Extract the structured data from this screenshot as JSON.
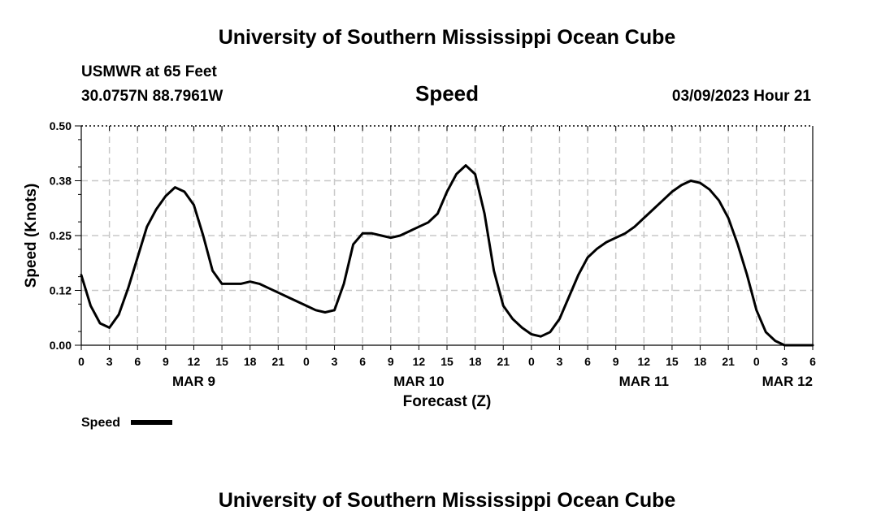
{
  "header": {
    "title": "University of Southern Mississippi Ocean Cube",
    "station": "USMWR at 65 Feet",
    "coords": "30.0757N  88.7961W",
    "variable": "Speed",
    "datetime": "03/09/2023 Hour 21"
  },
  "footer": {
    "title": "University of Southern Mississippi Ocean Cube"
  },
  "legend": {
    "label": "Speed",
    "color": "#000000"
  },
  "chart_data": {
    "type": "line",
    "title": "Speed",
    "xlabel": "Forecast (Z)",
    "ylabel": "Speed (Knots)",
    "ylim": [
      0,
      0.5
    ],
    "yticks": [
      "0.00",
      "0.12",
      "0.25",
      "0.38",
      "0.50"
    ],
    "x_range_hours": [
      0,
      78
    ],
    "x_tick_step_hours": 3,
    "x_tick_labels": [
      "0",
      "3",
      "6",
      "9",
      "12",
      "15",
      "18",
      "21",
      "0",
      "3",
      "6",
      "9",
      "12",
      "15",
      "18",
      "21",
      "0",
      "3",
      "6",
      "9",
      "12",
      "15",
      "18",
      "21",
      "0",
      "3",
      "6"
    ],
    "date_labels": [
      {
        "label": "MAR 9",
        "at_tick": 12
      },
      {
        "label": "MAR 10",
        "at_tick": 12
      },
      {
        "label": "MAR 11",
        "at_tick": 12
      },
      {
        "label": "MAR 12",
        "at_tick": 6
      }
    ],
    "grid": true,
    "legend_position": "bottom-left",
    "series": [
      {
        "name": "Speed",
        "color": "#000000",
        "x": [
          0,
          1,
          2,
          3,
          4,
          5,
          6,
          7,
          8,
          9,
          10,
          11,
          12,
          13,
          14,
          15,
          16,
          17,
          18,
          19,
          20,
          21,
          22,
          23,
          24,
          25,
          26,
          27,
          28,
          29,
          30,
          31,
          32,
          33,
          34,
          35,
          36,
          37,
          38,
          39,
          40,
          41,
          42,
          43,
          44,
          45,
          46,
          47,
          48,
          49,
          50,
          51,
          52,
          53,
          54,
          55,
          56,
          57,
          58,
          59,
          60,
          61,
          62,
          63,
          64,
          65,
          66,
          67,
          68,
          69,
          70,
          71,
          72,
          73,
          74,
          75,
          76,
          77,
          78
        ],
        "y": [
          0.16,
          0.09,
          0.05,
          0.04,
          0.07,
          0.13,
          0.2,
          0.27,
          0.31,
          0.34,
          0.36,
          0.35,
          0.32,
          0.25,
          0.17,
          0.14,
          0.14,
          0.14,
          0.145,
          0.14,
          0.13,
          0.12,
          0.11,
          0.1,
          0.09,
          0.08,
          0.075,
          0.08,
          0.14,
          0.23,
          0.255,
          0.255,
          0.25,
          0.245,
          0.25,
          0.26,
          0.27,
          0.28,
          0.3,
          0.35,
          0.39,
          0.41,
          0.39,
          0.3,
          0.17,
          0.09,
          0.06,
          0.04,
          0.025,
          0.02,
          0.03,
          0.06,
          0.11,
          0.16,
          0.2,
          0.22,
          0.235,
          0.245,
          0.255,
          0.27,
          0.29,
          0.31,
          0.33,
          0.35,
          0.365,
          0.375,
          0.37,
          0.355,
          0.33,
          0.29,
          0.23,
          0.16,
          0.08,
          0.03,
          0.01,
          0.0,
          0.0,
          0.0,
          0.0
        ]
      }
    ]
  }
}
